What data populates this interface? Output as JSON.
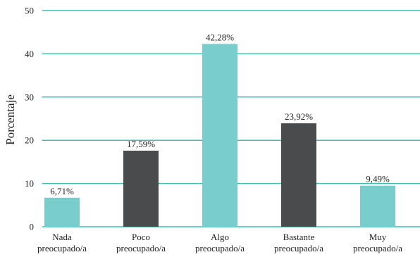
{
  "chart_data": {
    "type": "bar",
    "categories": [
      [
        "Nada",
        "preocupado/a"
      ],
      [
        "Poco",
        "preocupado/a"
      ],
      [
        "Algo",
        "preocupado/a"
      ],
      [
        "Bastante",
        "preocupado/a"
      ],
      [
        "Muy",
        "preocupado/a"
      ]
    ],
    "values": [
      6.71,
      17.59,
      42.28,
      23.92,
      9.49
    ],
    "value_labels": [
      "6,71%",
      "17,59%",
      "42,28%",
      "23,92%",
      "9,49%"
    ],
    "bar_colors": [
      "#79cdcd",
      "#4a4b4d",
      "#79cdcd",
      "#4a4b4d",
      "#79cdcd"
    ],
    "ylabel": "Porcentaje",
    "xlabel": "",
    "ylim": [
      0,
      50
    ],
    "yticks": [
      0,
      10,
      20,
      30,
      40,
      50
    ],
    "grid": true,
    "grid_color": "#3cc1b4",
    "legend": false
  }
}
